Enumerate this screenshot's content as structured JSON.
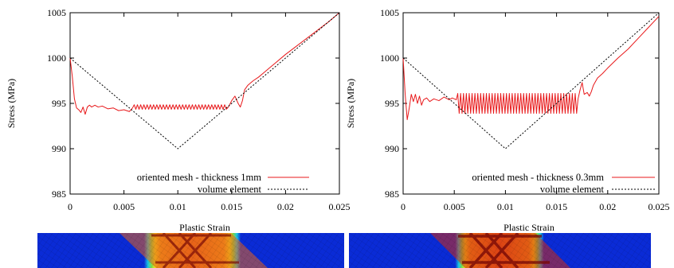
{
  "chart_data": [
    {
      "type": "line",
      "title": "",
      "xlabel": "Plastic Strain",
      "ylabel": "Stress (MPa)",
      "xlim": [
        0,
        0.025
      ],
      "ylim": [
        985,
        1005
      ],
      "x_ticks": [
        "0",
        "0.005",
        "0.01",
        "0.015",
        "0.02",
        "0.025"
      ],
      "y_ticks": [
        "985",
        "990",
        "995",
        "1000",
        "1005"
      ],
      "legend_position": "bottom-right",
      "series": [
        {
          "name": "oriented mesh - thickness 1mm",
          "color": "#e8191b",
          "style": "solid",
          "oscillation": {
            "x_start": 0.0058,
            "x_end": 0.0147,
            "center": 994.6,
            "amplitude": 0.25,
            "period": 0.0003
          },
          "x": [
            0,
            0.0002,
            0.0004,
            0.0006,
            0.0008,
            0.001,
            0.0012,
            0.0014,
            0.0016,
            0.0018,
            0.002,
            0.0023,
            0.0026,
            0.003,
            0.0035,
            0.004,
            0.0045,
            0.005,
            0.0055,
            0.0058,
            0.0147,
            0.015,
            0.0153,
            0.0156,
            0.0158,
            0.016,
            0.0162,
            0.0165,
            0.0168,
            0.017,
            0.0175,
            0.018,
            0.0185,
            0.019,
            0.02,
            0.021,
            0.022,
            0.023,
            0.024,
            0.025
          ],
          "y": [
            1000,
            998.0,
            995.5,
            994.5,
            994.3,
            994.0,
            994.6,
            993.8,
            994.6,
            994.8,
            994.6,
            994.8,
            994.6,
            994.7,
            994.4,
            994.5,
            994.2,
            994.3,
            994.1,
            994.5,
            994.6,
            995.3,
            995.8,
            995.0,
            994.6,
            995.3,
            996.5,
            997.0,
            997.3,
            997.5,
            997.9,
            998.4,
            998.9,
            999.4,
            1000.4,
            1001.3,
            1002.2,
            1003.1,
            1004.0,
            1005.0
          ]
        },
        {
          "name": "volume element",
          "color": "#000000",
          "style": "dashed",
          "x": [
            0,
            0.01,
            0.025
          ],
          "y": [
            1000,
            990,
            1005
          ]
        }
      ]
    },
    {
      "type": "line",
      "title": "",
      "xlabel": "Plastic Strain",
      "ylabel": "Stress (MPa)",
      "xlim": [
        0,
        0.025
      ],
      "ylim": [
        985,
        1005
      ],
      "x_ticks": [
        "0",
        "0.005",
        "0.01",
        "0.015",
        "0.02",
        "0.025"
      ],
      "y_ticks": [
        "985",
        "990",
        "995",
        "1000",
        "1005"
      ],
      "legend_position": "bottom-right",
      "series": [
        {
          "name": "oriented mesh - thickness 0.3mm",
          "color": "#e8191b",
          "style": "solid",
          "oscillation": {
            "x_start": 0.0052,
            "x_end": 0.0171,
            "center": 995.0,
            "amplitude": 1.1,
            "period": 0.00028
          },
          "x": [
            0,
            0.0002,
            0.0004,
            0.0006,
            0.0008,
            0.001,
            0.0012,
            0.0014,
            0.0016,
            0.0018,
            0.002,
            0.0023,
            0.0026,
            0.003,
            0.0035,
            0.004,
            0.0045,
            0.0048,
            0.0052,
            0.0171,
            0.0173,
            0.0175,
            0.0177,
            0.018,
            0.0182,
            0.0184,
            0.0186,
            0.019,
            0.0195,
            0.02,
            0.021,
            0.022,
            0.023,
            0.024,
            0.025
          ],
          "y": [
            1000,
            996.0,
            993.2,
            994.5,
            996.0,
            995.2,
            996.0,
            995.0,
            995.8,
            994.8,
            995.4,
            995.6,
            995.2,
            995.5,
            995.3,
            995.7,
            995.4,
            995.6,
            995.4,
            995.5,
            996.5,
            997.3,
            996.0,
            996.2,
            995.8,
            996.3,
            997.0,
            997.8,
            998.3,
            998.9,
            1000.0,
            1001.0,
            1002.2,
            1003.4,
            1004.6
          ]
        },
        {
          "name": "volume element",
          "color": "#000000",
          "style": "dashed",
          "x": [
            0,
            0.01,
            0.025
          ],
          "y": [
            1000,
            990,
            1005
          ]
        }
      ]
    }
  ],
  "field_images": [
    {
      "name": "mesh-field-1mm",
      "band": "diagonal shear band, red/orange core with dark crossing lines, blue background"
    },
    {
      "name": "mesh-field-03mm",
      "band": "diagonal shear band, red/orange core with dark crossing lines, blue background"
    }
  ],
  "colors": {
    "field_blue": "#0a2bd6",
    "field_orange": "#f29a1a",
    "field_red": "#d42a10",
    "field_dark": "#7a0a06"
  }
}
